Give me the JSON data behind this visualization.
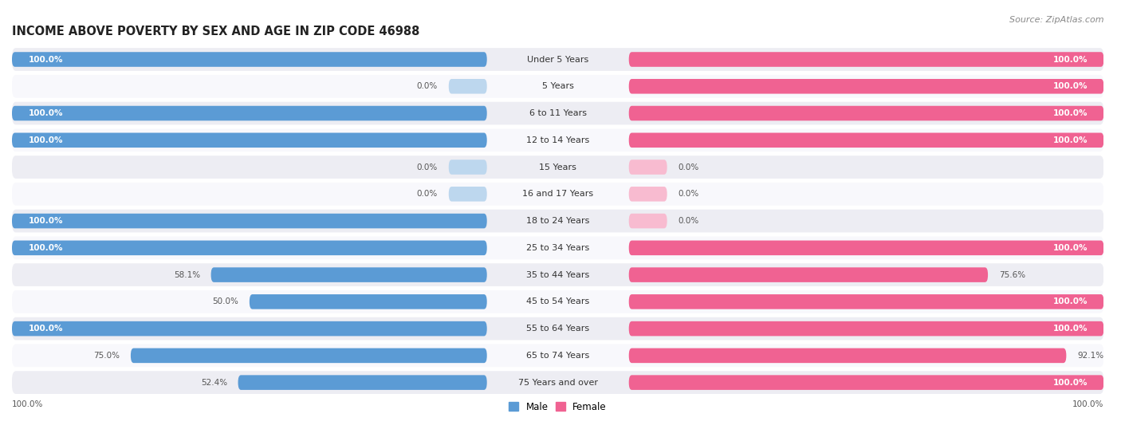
{
  "title": "INCOME ABOVE POVERTY BY SEX AND AGE IN ZIP CODE 46988",
  "source": "Source: ZipAtlas.com",
  "categories": [
    "Under 5 Years",
    "5 Years",
    "6 to 11 Years",
    "12 to 14 Years",
    "15 Years",
    "16 and 17 Years",
    "18 to 24 Years",
    "25 to 34 Years",
    "35 to 44 Years",
    "45 to 54 Years",
    "55 to 64 Years",
    "65 to 74 Years",
    "75 Years and over"
  ],
  "male_values": [
    100.0,
    0.0,
    100.0,
    100.0,
    0.0,
    0.0,
    100.0,
    100.0,
    58.1,
    50.0,
    100.0,
    75.0,
    52.4
  ],
  "female_values": [
    100.0,
    100.0,
    100.0,
    100.0,
    0.0,
    0.0,
    0.0,
    100.0,
    75.6,
    100.0,
    100.0,
    92.1,
    100.0
  ],
  "male_color": "#5b9bd5",
  "male_color_light": "#bdd7ee",
  "female_color": "#f06292",
  "female_color_light": "#f8bbd0",
  "male_label": "Male",
  "female_label": "Female",
  "max_value": 100.0,
  "title_fontsize": 10.5,
  "label_fontsize": 8.0,
  "value_fontsize": 7.5,
  "source_fontsize": 8,
  "row_color_odd": "#ededf3",
  "row_color_even": "#f8f8fc"
}
